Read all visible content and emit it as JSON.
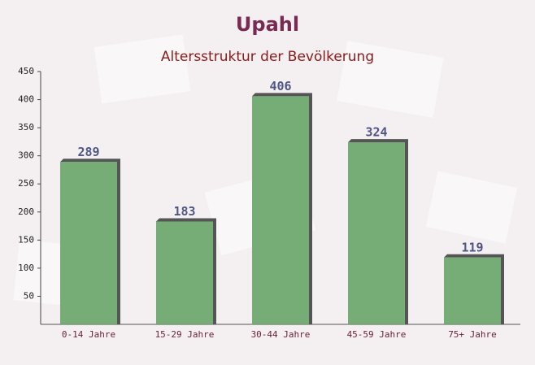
{
  "chart_data": {
    "type": "bar",
    "title": "Upahl",
    "subtitle": "Altersstruktur der Bevölkerung",
    "categories": [
      "0-14 Jahre",
      "15-29 Jahre",
      "30-44 Jahre",
      "45-59 Jahre",
      "75+ Jahre"
    ],
    "values": [
      289,
      183,
      406,
      324,
      119
    ],
    "color": "#6aa66a",
    "ylim": [
      0,
      450
    ],
    "yticks": [
      50,
      100,
      150,
      200,
      250,
      300,
      350,
      400,
      450
    ]
  }
}
